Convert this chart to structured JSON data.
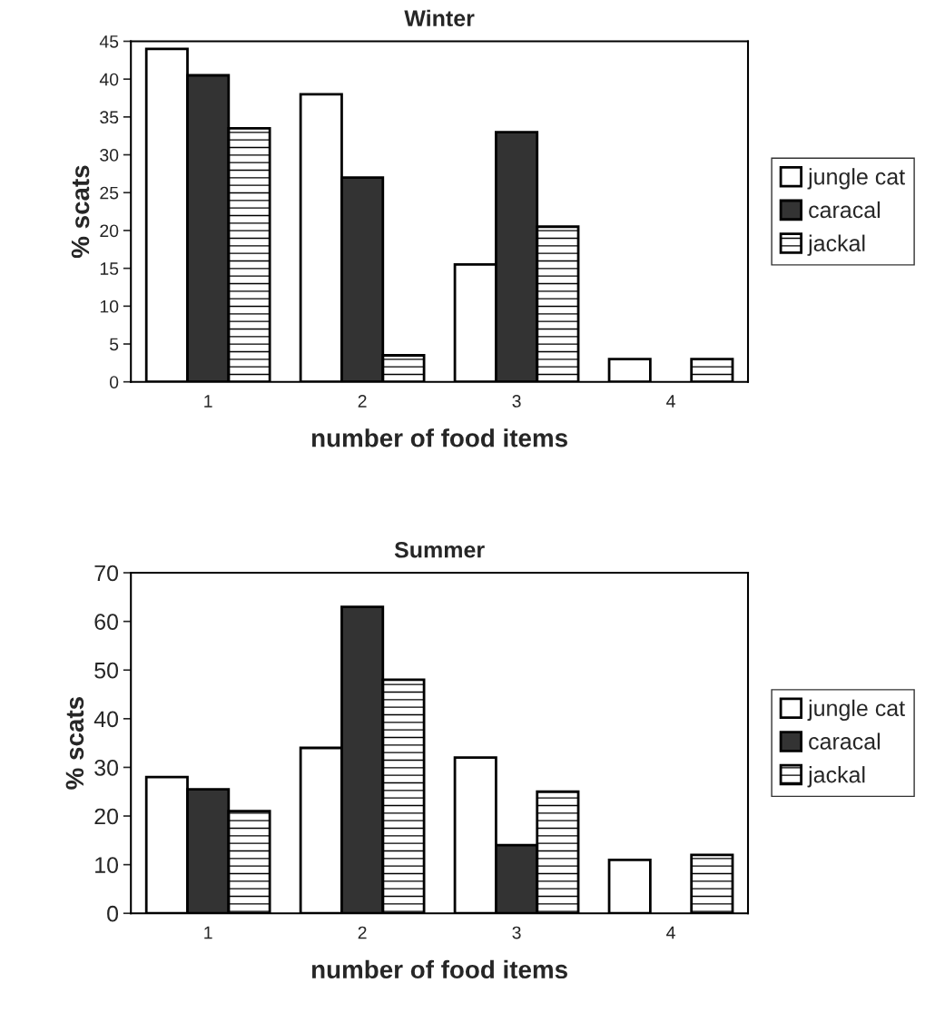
{
  "chart_data": [
    {
      "type": "bar",
      "title": "Winter",
      "xlabel": "number of food items",
      "ylabel": "% scats",
      "categories": [
        "1",
        "2",
        "3",
        "4"
      ],
      "series": [
        {
          "name": "jungle cat",
          "color": "#ffffff",
          "values": [
            44,
            38,
            15.5,
            3
          ]
        },
        {
          "name": "caracal",
          "color": "#333333",
          "values": [
            40.5,
            27,
            33,
            null
          ]
        },
        {
          "name": "jackal",
          "color": "#000000",
          "values": [
            33.5,
            3.5,
            20.5,
            3
          ]
        }
      ],
      "ylim": [
        0,
        45
      ],
      "yticks": [
        0,
        5,
        10,
        15,
        20,
        25,
        30,
        35,
        40,
        45
      ],
      "grid": false,
      "legend": "right"
    },
    {
      "type": "bar",
      "title": "Summer",
      "xlabel": "number of food items",
      "ylabel": "% scats",
      "categories": [
        "1",
        "2",
        "3",
        "4"
      ],
      "series": [
        {
          "name": "jungle cat",
          "color": "#ffffff",
          "values": [
            28,
            34,
            32,
            11
          ]
        },
        {
          "name": "caracal",
          "color": "#333333",
          "values": [
            25.5,
            63,
            14,
            null
          ]
        },
        {
          "name": "jackal",
          "color": "#000000",
          "values": [
            21,
            48,
            25,
            12
          ]
        }
      ],
      "ylim": [
        0,
        70
      ],
      "yticks": [
        0,
        10,
        20,
        30,
        40,
        50,
        60,
        70
      ],
      "grid": false,
      "legend": "right"
    }
  ]
}
